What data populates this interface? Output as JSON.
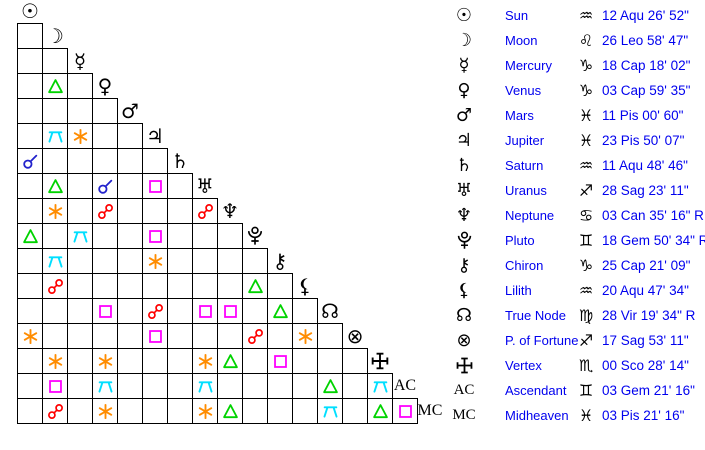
{
  "colors": {
    "background": "#ffffff",
    "grid_line": "#000000",
    "glyph_black": "#000000",
    "text_blue": "#0000ee",
    "aspect": {
      "conjunction": "#2222cc",
      "sextile": "#ff8c00",
      "square": "#ff00ff",
      "trine": "#00d300",
      "opposition": "#ff0000",
      "quincunx": "#00dfff"
    }
  },
  "planets": [
    {
      "id": "sun",
      "name": "Sun",
      "glyph": "sun-icon",
      "sign": "Aqu",
      "sign_glyph": "aquarius-icon",
      "position": "12 Aqu 26' 52\""
    },
    {
      "id": "moon",
      "name": "Moon",
      "glyph": "moon-icon",
      "sign": "Leo",
      "sign_glyph": "leo-icon",
      "position": "26 Leo 58' 47\""
    },
    {
      "id": "mercury",
      "name": "Mercury",
      "glyph": "mercury-icon",
      "sign": "Cap",
      "sign_glyph": "capricorn-icon",
      "position": "18 Cap 18' 02\""
    },
    {
      "id": "venus",
      "name": "Venus",
      "glyph": "venus-icon",
      "sign": "Cap",
      "sign_glyph": "capricorn-icon",
      "position": "03 Cap 59' 35\""
    },
    {
      "id": "mars",
      "name": "Mars",
      "glyph": "mars-icon",
      "sign": "Pis",
      "sign_glyph": "pisces-icon",
      "position": "11 Pis 00' 60\""
    },
    {
      "id": "jupiter",
      "name": "Jupiter",
      "glyph": "jupiter-icon",
      "sign": "Pis",
      "sign_glyph": "pisces-icon",
      "position": "23 Pis 50' 07\""
    },
    {
      "id": "saturn",
      "name": "Saturn",
      "glyph": "saturn-icon",
      "sign": "Aqu",
      "sign_glyph": "aquarius-icon",
      "position": "11 Aqu 48' 46\""
    },
    {
      "id": "uranus",
      "name": "Uranus",
      "glyph": "uranus-icon",
      "sign": "Sag",
      "sign_glyph": "sagittarius-icon",
      "position": "28 Sag 23' 11\""
    },
    {
      "id": "neptune",
      "name": "Neptune",
      "glyph": "neptune-icon",
      "sign": "Can",
      "sign_glyph": "cancer-icon",
      "position": "03 Can 35' 16\" R"
    },
    {
      "id": "pluto",
      "name": "Pluto",
      "glyph": "pluto-icon",
      "sign": "Gem",
      "sign_glyph": "gemini-icon",
      "position": "18 Gem 50' 34\" R"
    },
    {
      "id": "chiron",
      "name": "Chiron",
      "glyph": "chiron-icon",
      "sign": "Cap",
      "sign_glyph": "capricorn-icon",
      "position": "25 Cap 21' 09\""
    },
    {
      "id": "lilith",
      "name": "Lilith",
      "glyph": "lilith-icon",
      "sign": "Aqu",
      "sign_glyph": "aquarius-icon",
      "position": "20 Aqu 47' 34\""
    },
    {
      "id": "true_node",
      "name": "True Node",
      "glyph": "true-node-icon",
      "sign": "Vir",
      "sign_glyph": "virgo-icon",
      "position": "28 Vir 19' 34\" R"
    },
    {
      "id": "fortune",
      "name": "P. of Fortune",
      "glyph": "part-of-fortune-icon",
      "sign": "Sag",
      "sign_glyph": "sagittarius-icon",
      "position": "17 Sag 53' 11\""
    },
    {
      "id": "vertex",
      "name": "Vertex",
      "glyph": "vertex-icon",
      "sign": "Sco",
      "sign_glyph": "scorpio-icon",
      "position": "00 Sco 28' 14\""
    },
    {
      "id": "ascendant",
      "name": "Ascendant",
      "glyph": "ascendant-label",
      "abbr": "AC",
      "sign": "Gem",
      "sign_glyph": "gemini-icon",
      "position": "03 Gem 21' 16\""
    },
    {
      "id": "midheaven",
      "name": "Midheaven",
      "glyph": "midheaven-label",
      "abbr": "MC",
      "sign": "Pis",
      "sign_glyph": "pisces-icon",
      "position": "03 Pis 21' 16\""
    }
  ],
  "aspect_grid": {
    "description": "Triangular aspectarian; row planet vs column planet, planet order as in planets list",
    "rows": [
      {
        "planet": "sun",
        "aspects": []
      },
      {
        "planet": "moon",
        "aspects": []
      },
      {
        "planet": "mercury",
        "aspects": []
      },
      {
        "planet": "venus",
        "aspects": [
          {
            "col": 1,
            "with": "moon",
            "type": "trine"
          }
        ]
      },
      {
        "planet": "mars",
        "aspects": []
      },
      {
        "planet": "jupiter",
        "aspects": [
          {
            "col": 1,
            "with": "moon",
            "type": "quincunx"
          },
          {
            "col": 2,
            "with": "mercury",
            "type": "sextile"
          }
        ]
      },
      {
        "planet": "saturn",
        "aspects": [
          {
            "col": 0,
            "with": "sun",
            "type": "conjunction"
          }
        ]
      },
      {
        "planet": "uranus",
        "aspects": [
          {
            "col": 1,
            "with": "moon",
            "type": "trine"
          },
          {
            "col": 3,
            "with": "venus",
            "type": "conjunction"
          },
          {
            "col": 5,
            "with": "jupiter",
            "type": "square"
          }
        ]
      },
      {
        "planet": "neptune",
        "aspects": [
          {
            "col": 1,
            "with": "moon",
            "type": "sextile"
          },
          {
            "col": 3,
            "with": "venus",
            "type": "opposition"
          },
          {
            "col": 7,
            "with": "uranus",
            "type": "opposition"
          }
        ]
      },
      {
        "planet": "pluto",
        "aspects": [
          {
            "col": 0,
            "with": "sun",
            "type": "trine"
          },
          {
            "col": 2,
            "with": "mercury",
            "type": "quincunx"
          },
          {
            "col": 5,
            "with": "jupiter",
            "type": "square"
          }
        ]
      },
      {
        "planet": "chiron",
        "aspects": [
          {
            "col": 1,
            "with": "moon",
            "type": "quincunx"
          },
          {
            "col": 5,
            "with": "jupiter",
            "type": "sextile"
          }
        ]
      },
      {
        "planet": "lilith",
        "aspects": [
          {
            "col": 1,
            "with": "moon",
            "type": "opposition"
          },
          {
            "col": 9,
            "with": "pluto",
            "type": "trine"
          }
        ]
      },
      {
        "planet": "true_node",
        "aspects": [
          {
            "col": 3,
            "with": "venus",
            "type": "square"
          },
          {
            "col": 5,
            "with": "jupiter",
            "type": "opposition"
          },
          {
            "col": 7,
            "with": "uranus",
            "type": "square"
          },
          {
            "col": 8,
            "with": "neptune",
            "type": "square"
          },
          {
            "col": 10,
            "with": "chiron",
            "type": "trine"
          }
        ]
      },
      {
        "planet": "fortune",
        "aspects": [
          {
            "col": 0,
            "with": "sun",
            "type": "sextile"
          },
          {
            "col": 5,
            "with": "jupiter",
            "type": "square"
          },
          {
            "col": 9,
            "with": "pluto",
            "type": "opposition"
          },
          {
            "col": 11,
            "with": "lilith",
            "type": "sextile"
          }
        ]
      },
      {
        "planet": "vertex",
        "aspects": [
          {
            "col": 1,
            "with": "moon",
            "type": "sextile"
          },
          {
            "col": 3,
            "with": "venus",
            "type": "sextile"
          },
          {
            "col": 7,
            "with": "uranus",
            "type": "sextile"
          },
          {
            "col": 8,
            "with": "neptune",
            "type": "trine"
          },
          {
            "col": 10,
            "with": "chiron",
            "type": "square"
          }
        ]
      },
      {
        "planet": "ascendant",
        "aspects": [
          {
            "col": 1,
            "with": "moon",
            "type": "square"
          },
          {
            "col": 3,
            "with": "venus",
            "type": "quincunx"
          },
          {
            "col": 7,
            "with": "uranus",
            "type": "quincunx"
          },
          {
            "col": 12,
            "with": "true_node",
            "type": "trine"
          },
          {
            "col": 14,
            "with": "vertex",
            "type": "quincunx"
          }
        ]
      },
      {
        "planet": "midheaven",
        "aspects": [
          {
            "col": 1,
            "with": "moon",
            "type": "opposition"
          },
          {
            "col": 3,
            "with": "venus",
            "type": "sextile"
          },
          {
            "col": 7,
            "with": "uranus",
            "type": "sextile"
          },
          {
            "col": 8,
            "with": "neptune",
            "type": "trine"
          },
          {
            "col": 12,
            "with": "true_node",
            "type": "quincunx"
          },
          {
            "col": 14,
            "with": "vertex",
            "type": "trine"
          },
          {
            "col": 15,
            "with": "ascendant",
            "type": "square"
          }
        ]
      }
    ]
  }
}
